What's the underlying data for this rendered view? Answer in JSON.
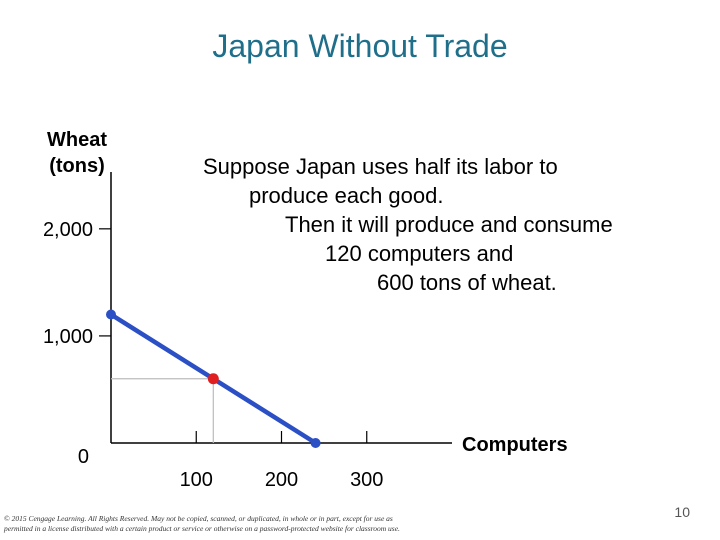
{
  "slide": {
    "title": "Japan Without Trade",
    "note_lines": [
      "Suppose Japan uses half its labor to",
      "produce each good.",
      "Then it will produce and consume",
      "120 computers and",
      "600 tons of wheat."
    ],
    "copyright_lines": [
      "© 2015 Cengage Learning. All Rights Reserved. May not be copied, scanned, or duplicated, in whole or in part, except for use as",
      "permitted in a license distributed with a certain product or service or otherwise on a password-protected website for classroom use."
    ],
    "page_number": "10"
  },
  "chart_data": {
    "type": "line",
    "xlabel": "Computers",
    "ylabel_lines": [
      "Wheat",
      "(tons)"
    ],
    "xlim": [
      0,
      400
    ],
    "ylim": [
      0,
      2400
    ],
    "x_ticks": [
      100,
      200,
      300
    ],
    "x_tick_labels": [
      "100",
      "200",
      "300"
    ],
    "y_ticks": [
      0,
      1000,
      2000
    ],
    "y_tick_labels": [
      "0",
      "1,000",
      "2,000"
    ],
    "series": [
      {
        "points": [
          [
            0,
            1200
          ],
          [
            240,
            0
          ]
        ],
        "color": "#2b4fc4",
        "endpoint_color": "#2b4fc4"
      }
    ],
    "highlight_point": {
      "x": 120,
      "y": 600,
      "color": "#e02020",
      "guide_color": "#bbbbbb"
    },
    "axis_color": "#000000"
  }
}
